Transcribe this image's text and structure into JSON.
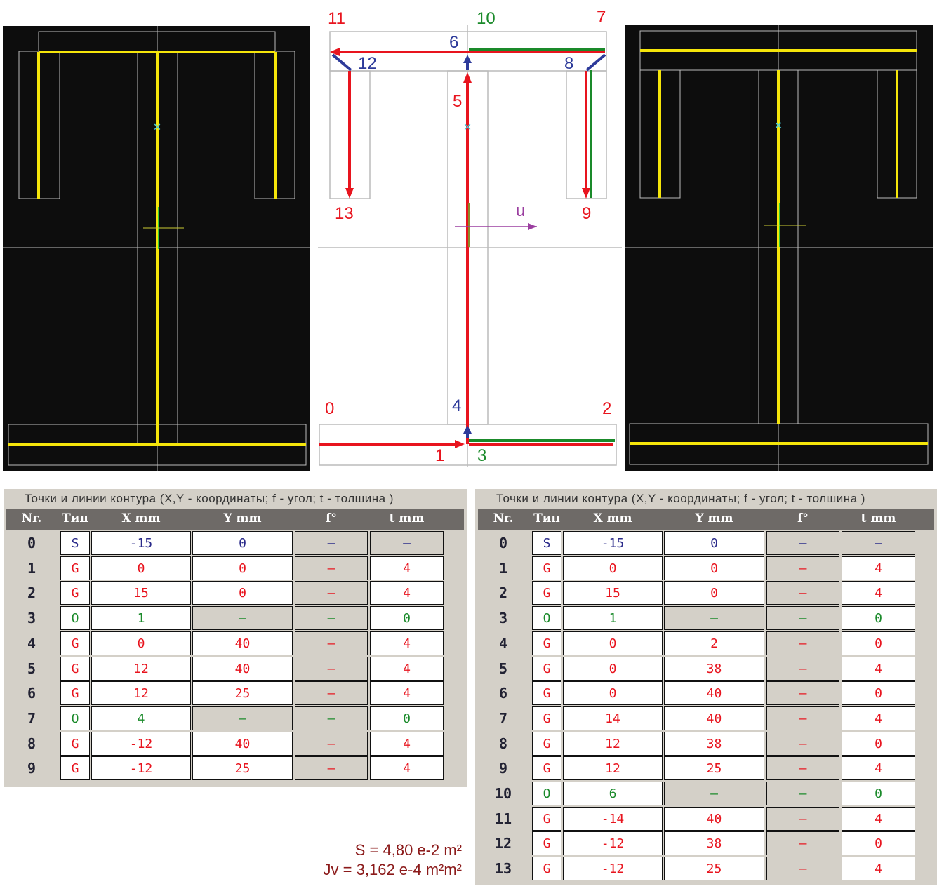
{
  "labels": {
    "p0": "0",
    "p1": "1",
    "p2": "2",
    "p3": "3",
    "p4": "4",
    "p5": "5",
    "p6": "6",
    "p7": "7",
    "p8": "8",
    "p9": "9",
    "p10": "10",
    "p11": "11",
    "p12": "12",
    "p13": "13",
    "u": "u"
  },
  "colors": {
    "S": "#2a2a8a",
    "G": "#e8141e",
    "O": "#1a8a2a",
    "panel": "#0d0d0d",
    "yellow": "#f5e50a"
  },
  "table_left": {
    "caption": "Точки и линии контура (X,Y - координаты; f - угол; t - толшина )",
    "headers": [
      "Nr.",
      "Тип",
      "X mm",
      "Y mm",
      "f°",
      "t mm"
    ],
    "rows": [
      [
        "0",
        "S",
        "-15",
        "0",
        "–",
        "–"
      ],
      [
        "1",
        "G",
        "0",
        "0",
        "–",
        "4"
      ],
      [
        "2",
        "G",
        "15",
        "0",
        "–",
        "4"
      ],
      [
        "3",
        "O",
        "1",
        "–",
        "–",
        "0"
      ],
      [
        "4",
        "G",
        "0",
        "40",
        "–",
        "4"
      ],
      [
        "5",
        "G",
        "12",
        "40",
        "–",
        "4"
      ],
      [
        "6",
        "G",
        "12",
        "25",
        "–",
        "4"
      ],
      [
        "7",
        "O",
        "4",
        "–",
        "–",
        "0"
      ],
      [
        "8",
        "G",
        "-12",
        "40",
        "–",
        "4"
      ],
      [
        "9",
        "G",
        "-12",
        "25",
        "–",
        "4"
      ]
    ]
  },
  "table_right": {
    "caption": "Точки и линии контура (X,Y - координаты; f - угол; t - толшина )",
    "headers": [
      "Nr.",
      "Тип",
      "X mm",
      "Y mm",
      "f°",
      "t mm"
    ],
    "rows": [
      [
        "0",
        "S",
        "-15",
        "0",
        "–",
        "–"
      ],
      [
        "1",
        "G",
        "0",
        "0",
        "–",
        "4"
      ],
      [
        "2",
        "G",
        "15",
        "0",
        "–",
        "4"
      ],
      [
        "3",
        "O",
        "1",
        "–",
        "–",
        "0"
      ],
      [
        "4",
        "G",
        "0",
        "2",
        "–",
        "0"
      ],
      [
        "5",
        "G",
        "0",
        "38",
        "–",
        "4"
      ],
      [
        "6",
        "G",
        "0",
        "40",
        "–",
        "0"
      ],
      [
        "7",
        "G",
        "14",
        "40",
        "–",
        "4"
      ],
      [
        "8",
        "G",
        "12",
        "38",
        "–",
        "0"
      ],
      [
        "9",
        "G",
        "12",
        "25",
        "–",
        "4"
      ],
      [
        "10",
        "O",
        "6",
        "–",
        "–",
        "0"
      ],
      [
        "11",
        "G",
        "-14",
        "40",
        "–",
        "4"
      ],
      [
        "12",
        "G",
        "-12",
        "38",
        "–",
        "0"
      ],
      [
        "13",
        "G",
        "-12",
        "25",
        "–",
        "4"
      ]
    ]
  },
  "results": {
    "area": "S = 4,80 e-2 m²",
    "inertia": "Jv = 3,162 e-4 m²m²"
  }
}
